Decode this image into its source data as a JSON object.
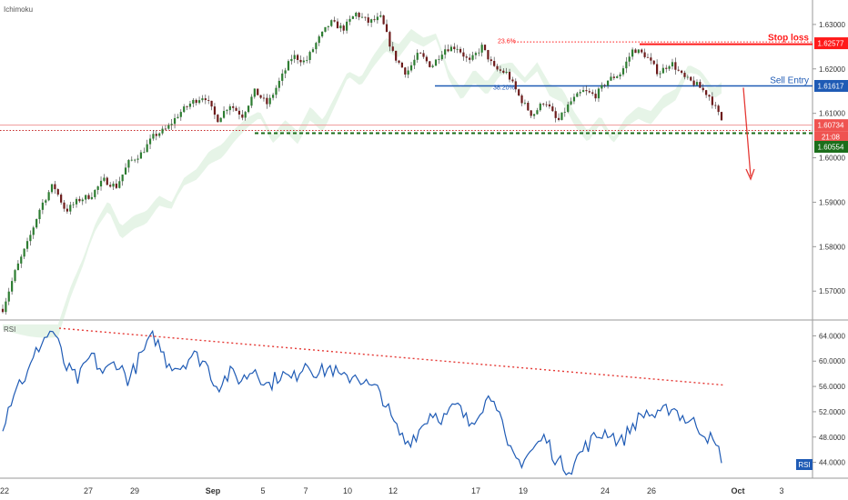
{
  "indicator_main": "Ichimoku",
  "indicator_sub": "RSI",
  "badge_rsi": "RSI",
  "chart_data": [
    {
      "type": "candlestick",
      "indicator": "Ichimoku",
      "ylim": [
        1.5635,
        1.6355
      ],
      "x_ticks": [
        "22",
        "27",
        "29",
        "Sep",
        "5",
        "7",
        "10",
        "12",
        "17",
        "19",
        "24",
        "26",
        "Oct",
        "3"
      ],
      "y_ticks": [
        "1.63000",
        "1.62000",
        "1.61000",
        "1.60000",
        "1.59000",
        "1.58000",
        "1.57000"
      ],
      "y_tick_values": [
        1.63,
        1.62,
        1.61,
        1.6,
        1.59,
        1.58,
        1.57
      ],
      "price_path": [
        1.566,
        1.5745,
        1.581,
        1.589,
        1.594,
        1.588,
        1.5905,
        1.5915,
        1.595,
        1.5935,
        1.599,
        1.601,
        1.605,
        1.6065,
        1.61,
        1.6125,
        1.614,
        1.6085,
        1.612,
        1.6095,
        1.615,
        1.612,
        1.6175,
        1.623,
        1.6215,
        1.6265,
        1.6305,
        1.629,
        1.6325,
        1.6305,
        1.6315,
        1.623,
        1.619,
        1.6235,
        1.6205,
        1.6245,
        1.625,
        1.6215,
        1.625,
        1.62,
        1.619,
        1.6135,
        1.6095,
        1.613,
        1.608,
        1.6125,
        1.615,
        1.614,
        1.6175,
        1.619,
        1.6245,
        1.623,
        1.619,
        1.6215,
        1.618,
        1.6165,
        1.614,
        1.6085
      ],
      "levels": {
        "stop_loss": {
          "label": "Stop loss",
          "value": "1.62577",
          "fib": "23.6%",
          "color": "#ff1a1a"
        },
        "sell_entry": {
          "label": "Sell Entry",
          "value": "1.61617",
          "fib": "38.20%",
          "color": "#1f5bb5"
        },
        "last_price": {
          "value": "1.60734",
          "color": "#ef5350"
        },
        "countdown": {
          "value": "21:08",
          "color": "#ef5350"
        },
        "target": {
          "value": "1.60554",
          "color": "#1b6e1b"
        }
      },
      "annotations": [
        "Stop loss",
        "Sell Entry",
        "23.6%",
        "38.20%"
      ],
      "arrow": {
        "direction": "down",
        "color": "#e53935"
      }
    },
    {
      "type": "line",
      "indicator": "RSI",
      "ylim": [
        41.5,
        66.5
      ],
      "y_ticks": [
        "64.0000",
        "60.0000",
        "56.0000",
        "52.0000",
        "48.0000",
        "44.0000"
      ],
      "y_tick_values": [
        64,
        60,
        56,
        52,
        48,
        44
      ],
      "rsi_path": [
        50,
        56,
        58,
        63,
        65,
        59,
        57,
        61,
        58,
        60,
        57,
        61,
        64,
        60,
        59,
        61,
        60,
        56,
        58,
        57,
        59,
        56,
        58,
        57,
        60,
        58,
        59,
        57,
        58,
        56,
        55,
        50,
        47,
        49,
        52,
        51,
        53,
        50,
        53,
        55,
        46,
        44,
        46,
        48,
        44,
        43,
        46,
        48,
        49,
        47,
        50,
        52,
        51,
        53,
        51,
        50,
        48,
        45
      ],
      "trendline": {
        "from": 65.2,
        "to": 56.2,
        "color": "#e53935"
      },
      "last_value_badge": "RSI",
      "color": "#1f5bb5"
    }
  ]
}
